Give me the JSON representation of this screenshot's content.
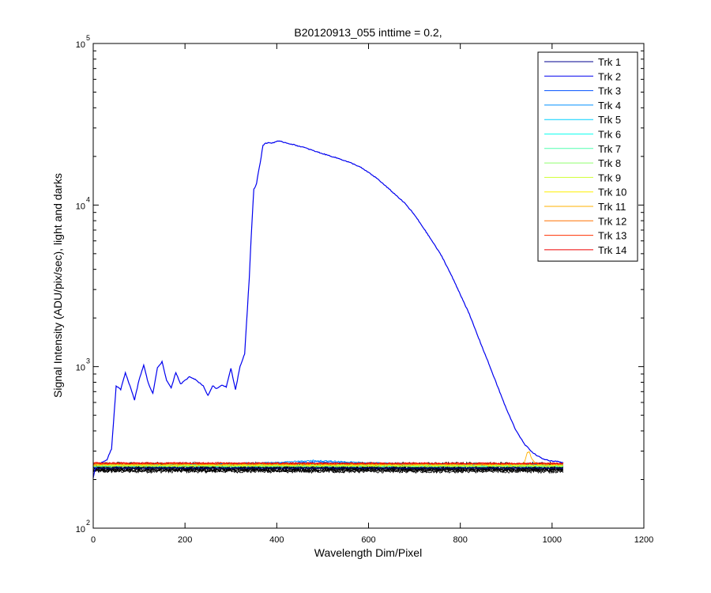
{
  "chart_data": {
    "type": "line",
    "title": "B20120913_055 inttime = 0.2,",
    "xlabel": "Wavelength Dim/Pixel",
    "ylabel": "Signal Intensity (ADU/pix/sec), light and darks",
    "xlim": [
      0,
      1200
    ],
    "ylim": [
      100,
      100000
    ],
    "yscale": "log",
    "grid": false,
    "legend_position": "top-right",
    "x_ticks": [
      {
        "value": 0,
        "label": "0"
      },
      {
        "value": 200,
        "label": "200"
      },
      {
        "value": 400,
        "label": "400"
      },
      {
        "value": 600,
        "label": "600"
      },
      {
        "value": 800,
        "label": "800"
      },
      {
        "value": 1000,
        "label": "1000"
      },
      {
        "value": 1200,
        "label": "1200"
      }
    ],
    "y_ticks": [
      {
        "value": 100,
        "base": "10",
        "exp": "2"
      },
      {
        "value": 1000,
        "base": "10",
        "exp": "3"
      },
      {
        "value": 10000,
        "base": "10",
        "exp": "4"
      },
      {
        "value": 100000,
        "base": "10",
        "exp": "5"
      }
    ],
    "series": [
      {
        "name": "Trk 1",
        "color": "#00008f",
        "x": [
          0,
          1024
        ],
        "y": [
          235,
          235
        ]
      },
      {
        "name": "Trk 2",
        "color": "#0000ef",
        "x": [
          0,
          5,
          10,
          20,
          30,
          40,
          50,
          60,
          70,
          80,
          90,
          100,
          110,
          120,
          130,
          140,
          150,
          160,
          170,
          180,
          190,
          200,
          210,
          220,
          230,
          240,
          250,
          260,
          270,
          280,
          290,
          300,
          310,
          320,
          330,
          340,
          345,
          350,
          355,
          360,
          365,
          370,
          375,
          380,
          390,
          400,
          410,
          420,
          440,
          460,
          480,
          500,
          520,
          540,
          560,
          580,
          600,
          620,
          640,
          660,
          680,
          700,
          720,
          740,
          760,
          780,
          800,
          820,
          840,
          860,
          880,
          900,
          920,
          940,
          960,
          980,
          1000,
          1010,
          1020,
          1024
        ],
        "y": [
          205,
          240,
          250,
          255,
          265,
          310,
          760,
          720,
          920,
          760,
          620,
          830,
          1020,
          790,
          680,
          990,
          1070,
          820,
          740,
          920,
          780,
          820,
          870,
          840,
          800,
          760,
          660,
          760,
          730,
          770,
          750,
          980,
          720,
          1000,
          1200,
          3500,
          7000,
          12500,
          13200,
          16000,
          19000,
          23500,
          24000,
          24300,
          24200,
          24800,
          24700,
          24300,
          23500,
          22700,
          21700,
          20800,
          20000,
          19200,
          18300,
          17300,
          15900,
          14500,
          12900,
          11500,
          10200,
          8700,
          7200,
          5900,
          4800,
          3700,
          2800,
          2100,
          1500,
          1080,
          770,
          550,
          410,
          330,
          290,
          268,
          260,
          260,
          255,
          255
        ]
      },
      {
        "name": "Trk 3",
        "color": "#0050ff",
        "x": [
          0,
          200,
          400,
          500,
          600,
          800,
          1024
        ],
        "y": [
          242,
          243,
          252,
          258,
          252,
          245,
          242
        ]
      },
      {
        "name": "Trk 4",
        "color": "#0090ff",
        "x": [
          0,
          200,
          400,
          480,
          600,
          800,
          1024
        ],
        "y": [
          245,
          246,
          255,
          262,
          254,
          246,
          244
        ]
      },
      {
        "name": "Trk 5",
        "color": "#00d0ff",
        "x": [
          0,
          1024
        ],
        "y": [
          247,
          246
        ]
      },
      {
        "name": "Trk 6",
        "color": "#10ffef",
        "x": [
          0,
          1024
        ],
        "y": [
          244,
          243
        ]
      },
      {
        "name": "Trk 7",
        "color": "#50ffaf",
        "x": [
          0,
          1024
        ],
        "y": [
          241,
          241
        ]
      },
      {
        "name": "Trk 8",
        "color": "#90ff6f",
        "x": [
          0,
          1024
        ],
        "y": [
          243,
          242
        ]
      },
      {
        "name": "Trk 9",
        "color": "#cfff30",
        "x": [
          0,
          1024
        ],
        "y": [
          246,
          245
        ]
      },
      {
        "name": "Trk 10",
        "color": "#ffef00",
        "x": [
          0,
          1024
        ],
        "y": [
          244,
          244
        ]
      },
      {
        "name": "Trk 11",
        "color": "#ffb000",
        "x": [
          0,
          930,
          940,
          945,
          950,
          955,
          965,
          1024
        ],
        "y": [
          248,
          248,
          255,
          290,
          300,
          270,
          250,
          248
        ]
      },
      {
        "name": "Trk 12",
        "color": "#ff7000",
        "x": [
          0,
          1024
        ],
        "y": [
          250,
          249
        ]
      },
      {
        "name": "Trk 13",
        "color": "#ff3000",
        "x": [
          0,
          1024
        ],
        "y": [
          252,
          251
        ]
      },
      {
        "name": "Trk 14",
        "color": "#ef0000",
        "x": [
          0,
          1024
        ],
        "y": [
          253,
          252
        ]
      }
    ],
    "darks": {
      "name": "darks",
      "color": "#000000",
      "y_low": 225,
      "y_high": 250,
      "count": 14
    }
  }
}
